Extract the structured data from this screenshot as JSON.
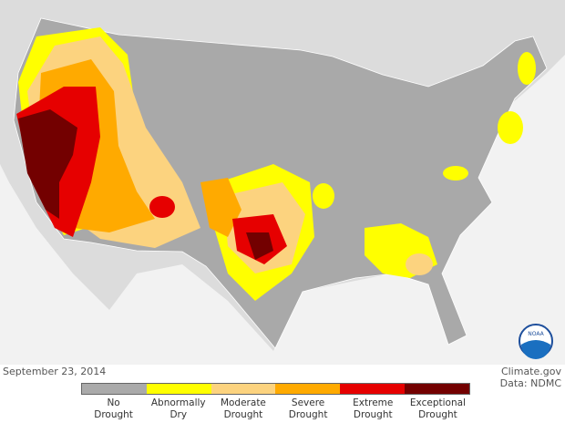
{
  "date": "September 23, 2014",
  "credit": {
    "line1": "Climate.gov",
    "line2": "Data: NDMC"
  },
  "logo": "NOAA",
  "legend": [
    {
      "line1": "No",
      "line2": "Drought",
      "color": "#aaaaaa"
    },
    {
      "line1": "Abnormally",
      "line2": "Dry",
      "color": "#ffff00"
    },
    {
      "line1": "Moderate",
      "line2": "Drought",
      "color": "#fcd37f"
    },
    {
      "line1": "Severe",
      "line2": "Drought",
      "color": "#ffaa00"
    },
    {
      "line1": "Extreme",
      "line2": "Drought",
      "color": "#e60000"
    },
    {
      "line1": "Exceptional",
      "line2": "Drought",
      "color": "#730000"
    }
  ]
}
